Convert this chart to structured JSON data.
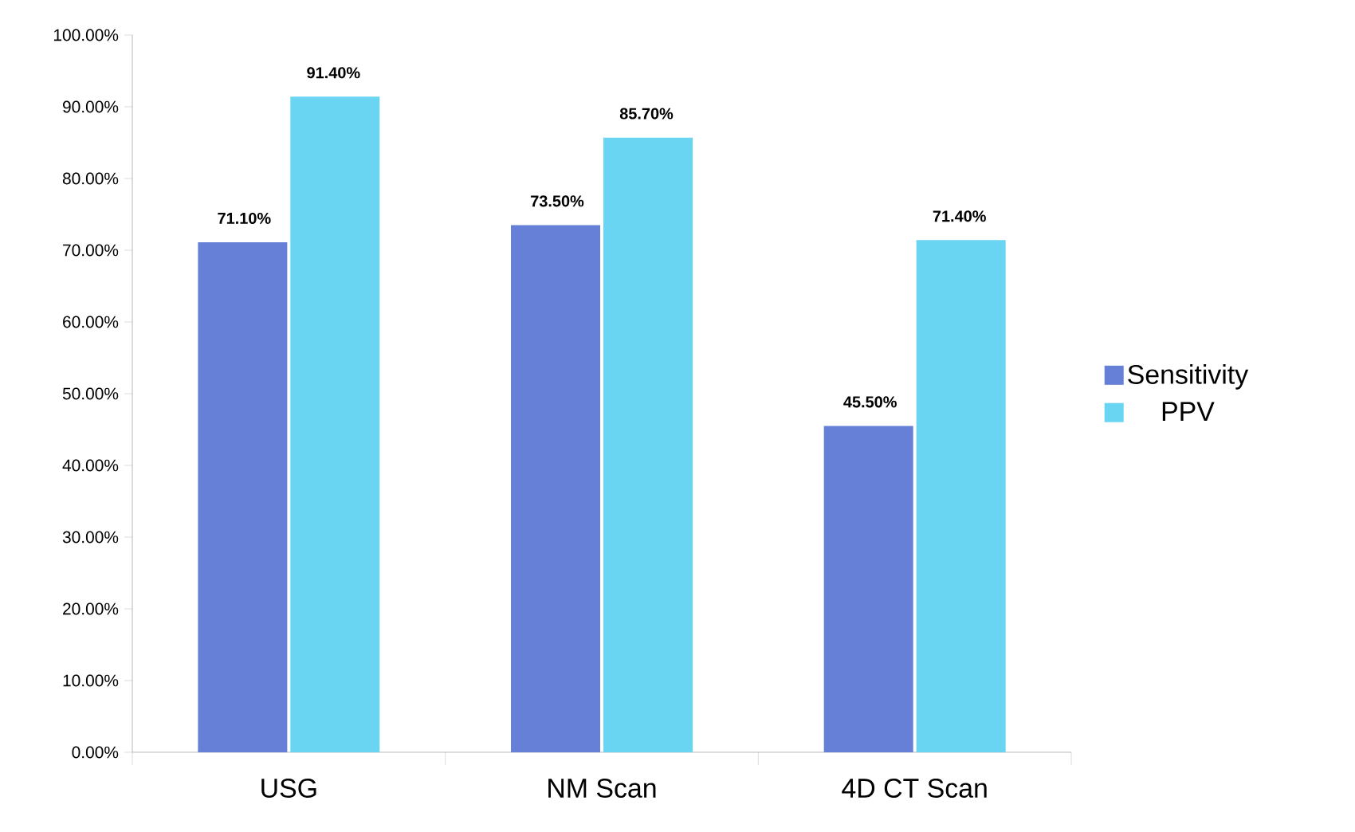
{
  "chart_data": {
    "type": "bar",
    "categories": [
      "USG",
      "NM Scan",
      "4D CT Scan"
    ],
    "series": [
      {
        "name": "Sensitivity",
        "color": "#6580d6",
        "values": [
          71.1,
          73.5,
          45.5
        ],
        "value_labels": [
          "71.10%",
          "73.50%",
          "45.50%"
        ]
      },
      {
        "name": "PPV",
        "color": "#6ad5f2",
        "values": [
          91.4,
          85.7,
          71.4
        ],
        "value_labels": [
          "91.40%",
          "85.70%",
          "71.40%"
        ]
      }
    ],
    "ylim": [
      0,
      100
    ],
    "yticks": [
      {
        "value": 0,
        "label": "0.00%"
      },
      {
        "value": 10,
        "label": "10.00%"
      },
      {
        "value": 20,
        "label": "20.00%"
      },
      {
        "value": 30,
        "label": "30.00%"
      },
      {
        "value": 40,
        "label": "40.00%"
      },
      {
        "value": 50,
        "label": "50.00%"
      },
      {
        "value": 60,
        "label": "60.00%"
      },
      {
        "value": 70,
        "label": "70.00%"
      },
      {
        "value": 80,
        "label": "80.00%"
      },
      {
        "value": 90,
        "label": "90.00%"
      },
      {
        "value": 100,
        "label": "100.00%"
      }
    ],
    "legend": "right"
  }
}
